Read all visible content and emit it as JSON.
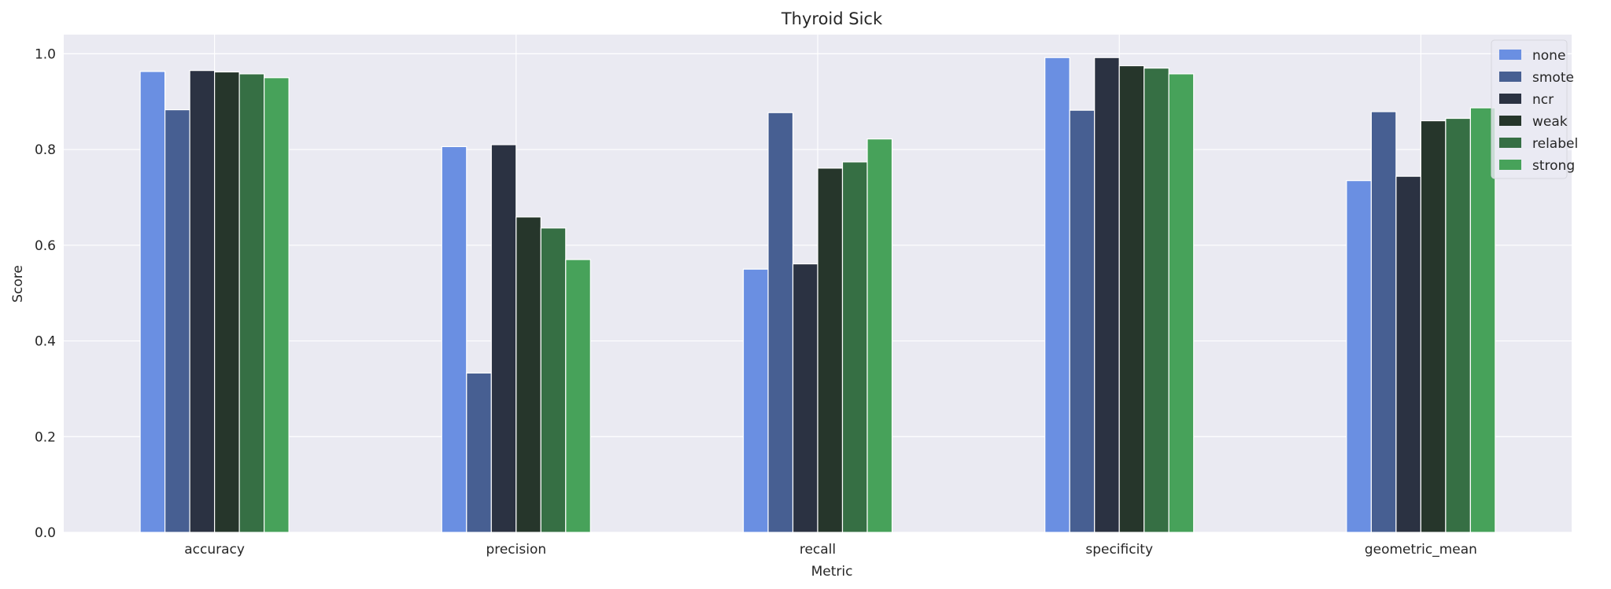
{
  "chart_data": {
    "type": "bar",
    "title": "Thyroid Sick",
    "xlabel": "Metric",
    "ylabel": "Score",
    "ylim": [
      0,
      1.04
    ],
    "yticks": [
      0.0,
      0.2,
      0.4,
      0.6,
      0.8,
      1.0
    ],
    "ytick_labels": [
      "0.0",
      "0.2",
      "0.4",
      "0.6",
      "0.8",
      "1.0"
    ],
    "grid": true,
    "legend_position": "top-right",
    "categories": [
      "accuracy",
      "precision",
      "recall",
      "specificity",
      "geometric_mean"
    ],
    "series": [
      {
        "name": "none",
        "color": "#6a8fe2",
        "values": [
          0.963,
          0.806,
          0.55,
          0.992,
          0.735
        ]
      },
      {
        "name": "smote",
        "color": "#475f92",
        "values": [
          0.883,
          0.333,
          0.877,
          0.882,
          0.879
        ]
      },
      {
        "name": "ncr",
        "color": "#2b3242",
        "values": [
          0.965,
          0.81,
          0.561,
          0.992,
          0.744
        ]
      },
      {
        "name": "weak",
        "color": "#26362b",
        "values": [
          0.962,
          0.659,
          0.761,
          0.975,
          0.86
        ]
      },
      {
        "name": "relabel",
        "color": "#366f44",
        "values": [
          0.958,
          0.636,
          0.774,
          0.97,
          0.865
        ]
      },
      {
        "name": "strong",
        "color": "#47a25a",
        "values": [
          0.95,
          0.57,
          0.822,
          0.958,
          0.887
        ]
      }
    ]
  }
}
